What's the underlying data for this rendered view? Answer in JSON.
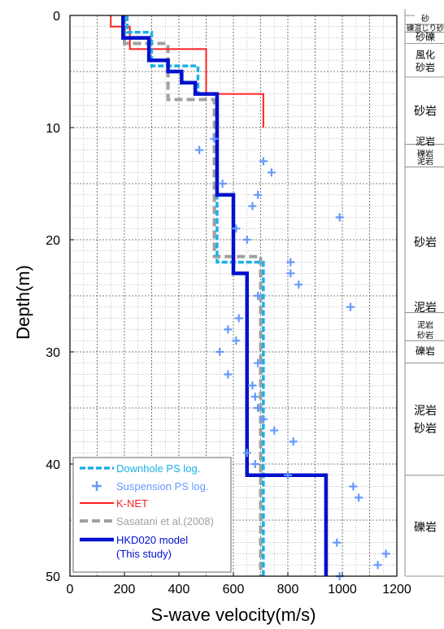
{
  "chart_data": {
    "type": "line",
    "xlabel": "S-wave velocity(m/s)",
    "ylabel": "Depth(m)",
    "xlim": [
      0,
      1200
    ],
    "ylim": [
      0,
      50
    ],
    "y_inverted": true,
    "x_ticks": [
      0,
      200,
      400,
      600,
      800,
      1000,
      1200
    ],
    "y_ticks": [
      0,
      10,
      20,
      30,
      40,
      50
    ],
    "grid": true,
    "legend_position": "bottom-left",
    "series": [
      {
        "name": "Downhole PS log.",
        "style": "dashed",
        "color": "#1ab0e8",
        "points": [
          [
            210,
            0
          ],
          [
            210,
            1.5
          ],
          [
            300,
            1.5
          ],
          [
            300,
            4.5
          ],
          [
            470,
            4.5
          ],
          [
            470,
            7
          ],
          [
            540,
            7
          ],
          [
            540,
            22
          ],
          [
            710,
            22
          ],
          [
            710,
            50
          ]
        ]
      },
      {
        "name": "Suspension PS log.",
        "style": "markers",
        "marker": "+",
        "color": "#6699ff",
        "points": [
          [
            530,
            11
          ],
          [
            475,
            12
          ],
          [
            710,
            13
          ],
          [
            740,
            14
          ],
          [
            560,
            15
          ],
          [
            690,
            16
          ],
          [
            670,
            17
          ],
          [
            990,
            18
          ],
          [
            610,
            19
          ],
          [
            650,
            20
          ],
          [
            810,
            22
          ],
          [
            810,
            23
          ],
          [
            840,
            24
          ],
          [
            690,
            25
          ],
          [
            1030,
            26
          ],
          [
            620,
            27
          ],
          [
            580,
            28
          ],
          [
            610,
            29
          ],
          [
            550,
            30
          ],
          [
            690,
            31
          ],
          [
            580,
            32
          ],
          [
            670,
            33
          ],
          [
            680,
            34
          ],
          [
            690,
            35
          ],
          [
            710,
            36
          ],
          [
            750,
            37
          ],
          [
            820,
            38
          ],
          [
            650,
            39
          ],
          [
            680,
            40
          ],
          [
            800,
            41
          ],
          [
            1040,
            42
          ],
          [
            1060,
            43
          ],
          [
            980,
            47
          ],
          [
            1160,
            48
          ],
          [
            1130,
            49
          ],
          [
            990,
            50
          ]
        ]
      },
      {
        "name": "K-NET",
        "style": "solid",
        "color": "#ff2020",
        "points": [
          [
            150,
            0
          ],
          [
            150,
            1
          ],
          [
            220,
            1
          ],
          [
            220,
            3
          ],
          [
            500,
            3
          ],
          [
            500,
            7
          ],
          [
            710,
            7
          ],
          [
            710,
            10
          ]
        ]
      },
      {
        "name": "Sasatani et al.(2008)",
        "style": "dashed",
        "color": "#a0a0a0",
        "points": [
          [
            200,
            0
          ],
          [
            200,
            2.5
          ],
          [
            360,
            2.5
          ],
          [
            360,
            7.5
          ],
          [
            530,
            7.5
          ],
          [
            530,
            21.5
          ],
          [
            700,
            21.5
          ],
          [
            700,
            50
          ]
        ]
      },
      {
        "name": "HKD020 model\n(This study)",
        "style": "solid",
        "color": "#0010cc",
        "points": [
          [
            195,
            0
          ],
          [
            195,
            2
          ],
          [
            290,
            2
          ],
          [
            290,
            4
          ],
          [
            360,
            4
          ],
          [
            360,
            5
          ],
          [
            410,
            5
          ],
          [
            410,
            6
          ],
          [
            460,
            6
          ],
          [
            460,
            7
          ],
          [
            540,
            7
          ],
          [
            540,
            16
          ],
          [
            600,
            16
          ],
          [
            600,
            23
          ],
          [
            650,
            23
          ],
          [
            650,
            41
          ],
          [
            940,
            41
          ],
          [
            940,
            50
          ]
        ]
      }
    ],
    "geology": {
      "boundaries": [
        0.8,
        1.5,
        2.5,
        5.5,
        11.5,
        13.5,
        26.5,
        29,
        31,
        41,
        50
      ],
      "labels": [
        {
          "text": "砂",
          "depth": 0.3,
          "size": 10
        },
        {
          "text": "礫混じり砂",
          "depth": 1.1,
          "size": 10
        },
        {
          "text": "砂礫",
          "depth": 1.9,
          "size": 12
        },
        {
          "text": "風化",
          "depth": 3.5,
          "size": 12
        },
        {
          "text": "砂岩",
          "depth": 4.6,
          "size": 12
        },
        {
          "text": "砂岩",
          "depth": 8.5,
          "size": 14
        },
        {
          "text": "泥岩",
          "depth": 11.2,
          "size": 12
        },
        {
          "text": "礫岩",
          "depth": 12.3,
          "size": 10
        },
        {
          "text": "泥岩",
          "depth": 13.0,
          "size": 10
        },
        {
          "text": "砂岩",
          "depth": 20.2,
          "size": 14
        },
        {
          "text": "泥岩",
          "depth": 26.0,
          "size": 14
        },
        {
          "text": "泥岩",
          "depth": 27.6,
          "size": 10
        },
        {
          "text": "砂岩",
          "depth": 28.5,
          "size": 10
        },
        {
          "text": "礫岩",
          "depth": 29.9,
          "size": 12
        },
        {
          "text": "泥岩",
          "depth": 35.2,
          "size": 14
        },
        {
          "text": "砂岩",
          "depth": 36.8,
          "size": 14
        },
        {
          "text": "礫岩",
          "depth": 45.6,
          "size": 14
        }
      ]
    }
  }
}
